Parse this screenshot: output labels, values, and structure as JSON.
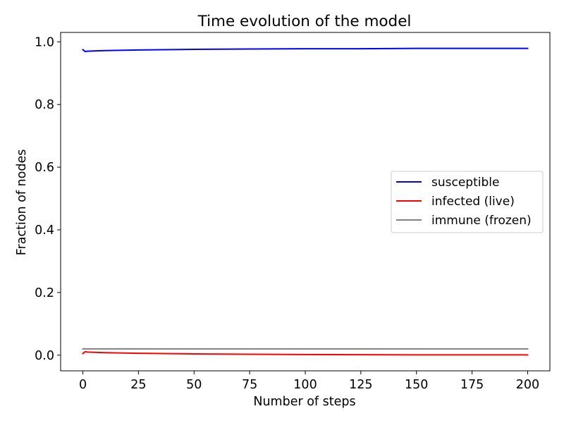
{
  "chart_data": {
    "type": "line",
    "title": "Time evolution of the model",
    "xlabel": "Number of steps",
    "ylabel": "Fraction of nodes",
    "xlim": [
      -10,
      210
    ],
    "ylim": [
      -0.05,
      1.03
    ],
    "xticks": [
      0,
      25,
      50,
      75,
      100,
      125,
      150,
      175,
      200
    ],
    "yticks": [
      0.0,
      0.2,
      0.4,
      0.6,
      0.8,
      1.0
    ],
    "xtick_labels": [
      "0",
      "25",
      "50",
      "75",
      "100",
      "125",
      "150",
      "175",
      "200"
    ],
    "ytick_labels": [
      "0.0",
      "0.2",
      "0.4",
      "0.6",
      "0.8",
      "1.0"
    ],
    "grid": false,
    "legend_position": "center-right",
    "series": [
      {
        "name": "susceptible",
        "color": "#0000ff",
        "x": [
          0,
          1,
          2,
          5,
          10,
          25,
          50,
          75,
          100,
          125,
          150,
          175,
          200
        ],
        "y": [
          0.975,
          0.969,
          0.97,
          0.971,
          0.972,
          0.974,
          0.976,
          0.977,
          0.978,
          0.978,
          0.979,
          0.979,
          0.979
        ]
      },
      {
        "name": "infected (live)",
        "color": "#ff0000",
        "x": [
          0,
          1,
          2,
          5,
          10,
          25,
          50,
          75,
          100,
          125,
          150,
          175,
          200
        ],
        "y": [
          0.005,
          0.011,
          0.01,
          0.009,
          0.008,
          0.006,
          0.004,
          0.003,
          0.002,
          0.0015,
          0.001,
          0.001,
          0.001
        ]
      },
      {
        "name": "immune (frozen)",
        "color": "#808080",
        "x": [
          0,
          200
        ],
        "y": [
          0.02,
          0.02
        ]
      }
    ]
  }
}
